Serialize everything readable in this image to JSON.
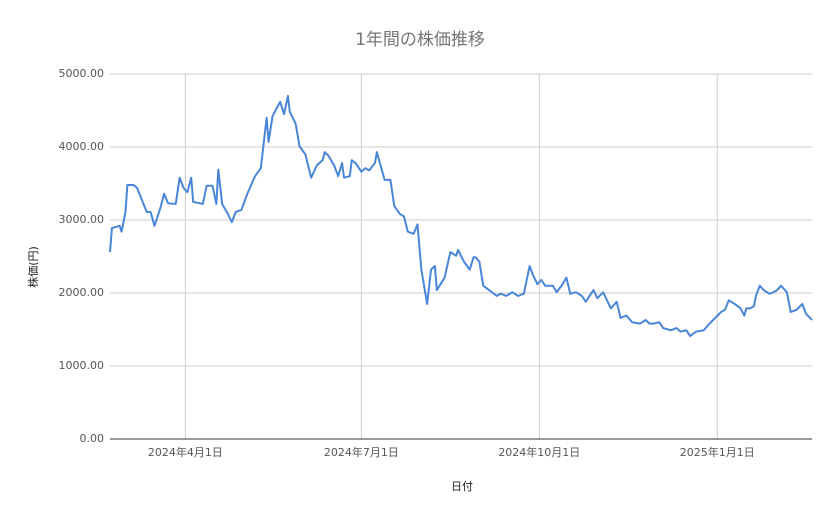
{
  "chart_data": {
    "type": "line",
    "title": "1年間の株価推移",
    "x_label": "日付",
    "y_label": "株価(円)",
    "x": [
      "2024-02-22",
      "2024-02-23",
      "2024-02-27",
      "2024-02-28",
      "2024-03-01",
      "2024-03-02",
      "2024-03-05",
      "2024-03-07",
      "2024-03-12",
      "2024-03-14",
      "2024-03-16",
      "2024-03-19",
      "2024-03-21",
      "2024-03-23",
      "2024-03-27",
      "2024-03-29",
      "2024-03-31",
      "2024-04-02",
      "2024-04-04",
      "2024-04-05",
      "2024-04-10",
      "2024-04-12",
      "2024-04-15",
      "2024-04-17",
      "2024-04-18",
      "2024-04-20",
      "2024-04-23",
      "2024-04-25",
      "2024-04-27",
      "2024-04-30",
      "2024-05-03",
      "2024-05-07",
      "2024-05-10",
      "2024-05-13",
      "2024-05-14",
      "2024-05-16",
      "2024-05-20",
      "2024-05-22",
      "2024-05-24",
      "2024-05-25",
      "2024-05-28",
      "2024-05-30",
      "2024-06-02",
      "2024-06-05",
      "2024-06-08",
      "2024-06-11",
      "2024-06-12",
      "2024-06-14",
      "2024-06-17",
      "2024-06-19",
      "2024-06-21",
      "2024-06-22",
      "2024-06-25",
      "2024-06-26",
      "2024-06-28",
      "2024-07-01",
      "2024-07-03",
      "2024-07-05",
      "2024-07-08",
      "2024-07-09",
      "2024-07-11",
      "2024-07-13",
      "2024-07-16",
      "2024-07-18",
      "2024-07-21",
      "2024-07-23",
      "2024-07-25",
      "2024-07-28",
      "2024-07-30",
      "2024-08-01",
      "2024-08-04",
      "2024-08-06",
      "2024-08-08",
      "2024-08-09",
      "2024-08-13",
      "2024-08-16",
      "2024-08-19",
      "2024-08-20",
      "2024-08-23",
      "2024-08-26",
      "2024-08-28",
      "2024-08-29",
      "2024-08-31",
      "2024-09-02",
      "2024-09-05",
      "2024-09-09",
      "2024-09-11",
      "2024-09-14",
      "2024-09-17",
      "2024-09-20",
      "2024-09-23",
      "2024-09-26",
      "2024-09-28",
      "2024-09-30",
      "2024-10-02",
      "2024-10-04",
      "2024-10-08",
      "2024-10-10",
      "2024-10-13",
      "2024-10-15",
      "2024-10-17",
      "2024-10-20",
      "2024-10-23",
      "2024-10-25",
      "2024-10-27",
      "2024-10-29",
      "2024-10-31",
      "2024-11-03",
      "2024-11-07",
      "2024-11-10",
      "2024-11-12",
      "2024-11-15",
      "2024-11-18",
      "2024-11-22",
      "2024-11-25",
      "2024-11-27",
      "2024-11-29",
      "2024-12-02",
      "2024-12-04",
      "2024-12-08",
      "2024-12-11",
      "2024-12-13",
      "2024-12-16",
      "2024-12-18",
      "2024-12-21",
      "2024-12-25",
      "2024-12-28",
      "2024-12-31",
      "2025-01-03",
      "2025-01-05",
      "2025-01-07",
      "2025-01-10",
      "2025-01-13",
      "2025-01-15",
      "2025-01-16",
      "2025-01-18",
      "2025-01-20",
      "2025-01-21",
      "2025-01-23",
      "2025-01-25",
      "2025-01-28",
      "2025-01-30",
      "2025-02-01",
      "2025-02-03",
      "2025-02-06",
      "2025-02-08",
      "2025-02-11",
      "2025-02-14",
      "2025-02-16",
      "2025-02-18",
      "2025-02-19"
    ],
    "series": [
      {
        "name": "株価",
        "color": "#4a86d8",
        "values": [
          2560,
          2890,
          2920,
          2840,
          3110,
          3480,
          3480,
          3440,
          3110,
          3110,
          2920,
          3160,
          3360,
          3230,
          3220,
          3580,
          3440,
          3380,
          3580,
          3250,
          3220,
          3470,
          3470,
          3220,
          3690,
          3220,
          3080,
          2970,
          3110,
          3140,
          3360,
          3600,
          3710,
          4400,
          4070,
          4420,
          4620,
          4450,
          4700,
          4480,
          4320,
          4010,
          3900,
          3580,
          3750,
          3820,
          3930,
          3880,
          3740,
          3600,
          3780,
          3580,
          3600,
          3820,
          3780,
          3660,
          3710,
          3680,
          3780,
          3930,
          3740,
          3550,
          3550,
          3190,
          3080,
          3050,
          2840,
          2810,
          2940,
          2320,
          1850,
          2320,
          2370,
          2040,
          2210,
          2560,
          2510,
          2590,
          2430,
          2320,
          2490,
          2490,
          2430,
          2100,
          2040,
          1960,
          1990,
          1960,
          2010,
          1960,
          1990,
          2370,
          2230,
          2120,
          2180,
          2100,
          2100,
          2010,
          2120,
          2210,
          1990,
          2010,
          1960,
          1880,
          1960,
          2040,
          1930,
          2010,
          1790,
          1880,
          1660,
          1690,
          1600,
          1580,
          1630,
          1580,
          1580,
          1600,
          1520,
          1490,
          1520,
          1470,
          1490,
          1410,
          1470,
          1490,
          1580,
          1660,
          1740,
          1770,
          1900,
          1850,
          1790,
          1690,
          1790,
          1790,
          1820,
          1960,
          2100,
          2040,
          1990,
          2010,
          2040,
          2100,
          2010,
          1740,
          1770,
          1850,
          1710,
          1660,
          1630
        ]
      }
    ],
    "xlim": [
      "2024-02-22",
      "2025-02-19"
    ],
    "xticks": [
      {
        "value": "2024-04-01",
        "label": "2024年4月1日"
      },
      {
        "value": "2024-07-01",
        "label": "2024年7月1日"
      },
      {
        "value": "2024-10-01",
        "label": "2024年10月1日"
      },
      {
        "value": "2025-01-01",
        "label": "2025年1月1日"
      }
    ],
    "ylim": [
      0,
      5000
    ],
    "yticks": [
      {
        "value": 0,
        "label": "0.00"
      },
      {
        "value": 1000,
        "label": "1000.00"
      },
      {
        "value": 2000,
        "label": "2000.00"
      },
      {
        "value": 3000,
        "label": "3000.00"
      },
      {
        "value": 4000,
        "label": "4000.00"
      },
      {
        "value": 5000,
        "label": "5000.00"
      }
    ],
    "grid": true
  }
}
